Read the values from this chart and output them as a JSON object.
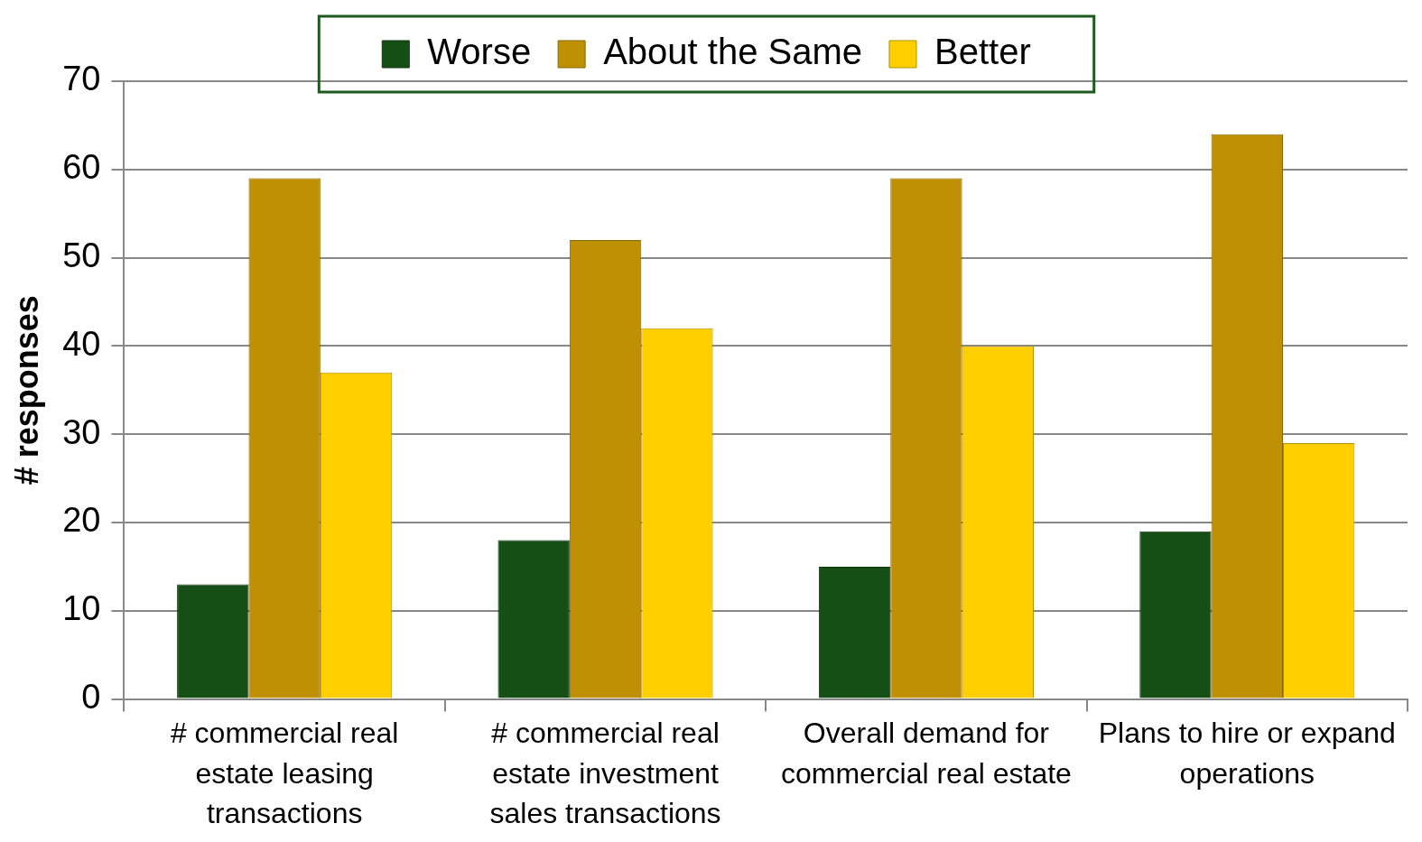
{
  "chart_data": {
    "type": "bar",
    "ylabel": "# responses",
    "categories": [
      "# commercial real estate leasing transactions",
      "# commercial real estate investment sales transactions",
      "Overall demand for commercial real estate",
      "Plans to hire or expand operations"
    ],
    "series": [
      {
        "name": "Worse",
        "color": "#154f16",
        "values": [
          13,
          18,
          15,
          19
        ]
      },
      {
        "name": "About the Same",
        "color": "#c09004",
        "values": [
          59,
          52,
          59,
          64
        ]
      },
      {
        "name": "Better",
        "color": "#ffcf00",
        "values": [
          37,
          42,
          40,
          29
        ]
      }
    ],
    "ylim": [
      0,
      70
    ],
    "yticks": [
      0,
      10,
      20,
      30,
      40,
      50,
      60,
      70
    ],
    "grid": "y",
    "legend": "top"
  }
}
